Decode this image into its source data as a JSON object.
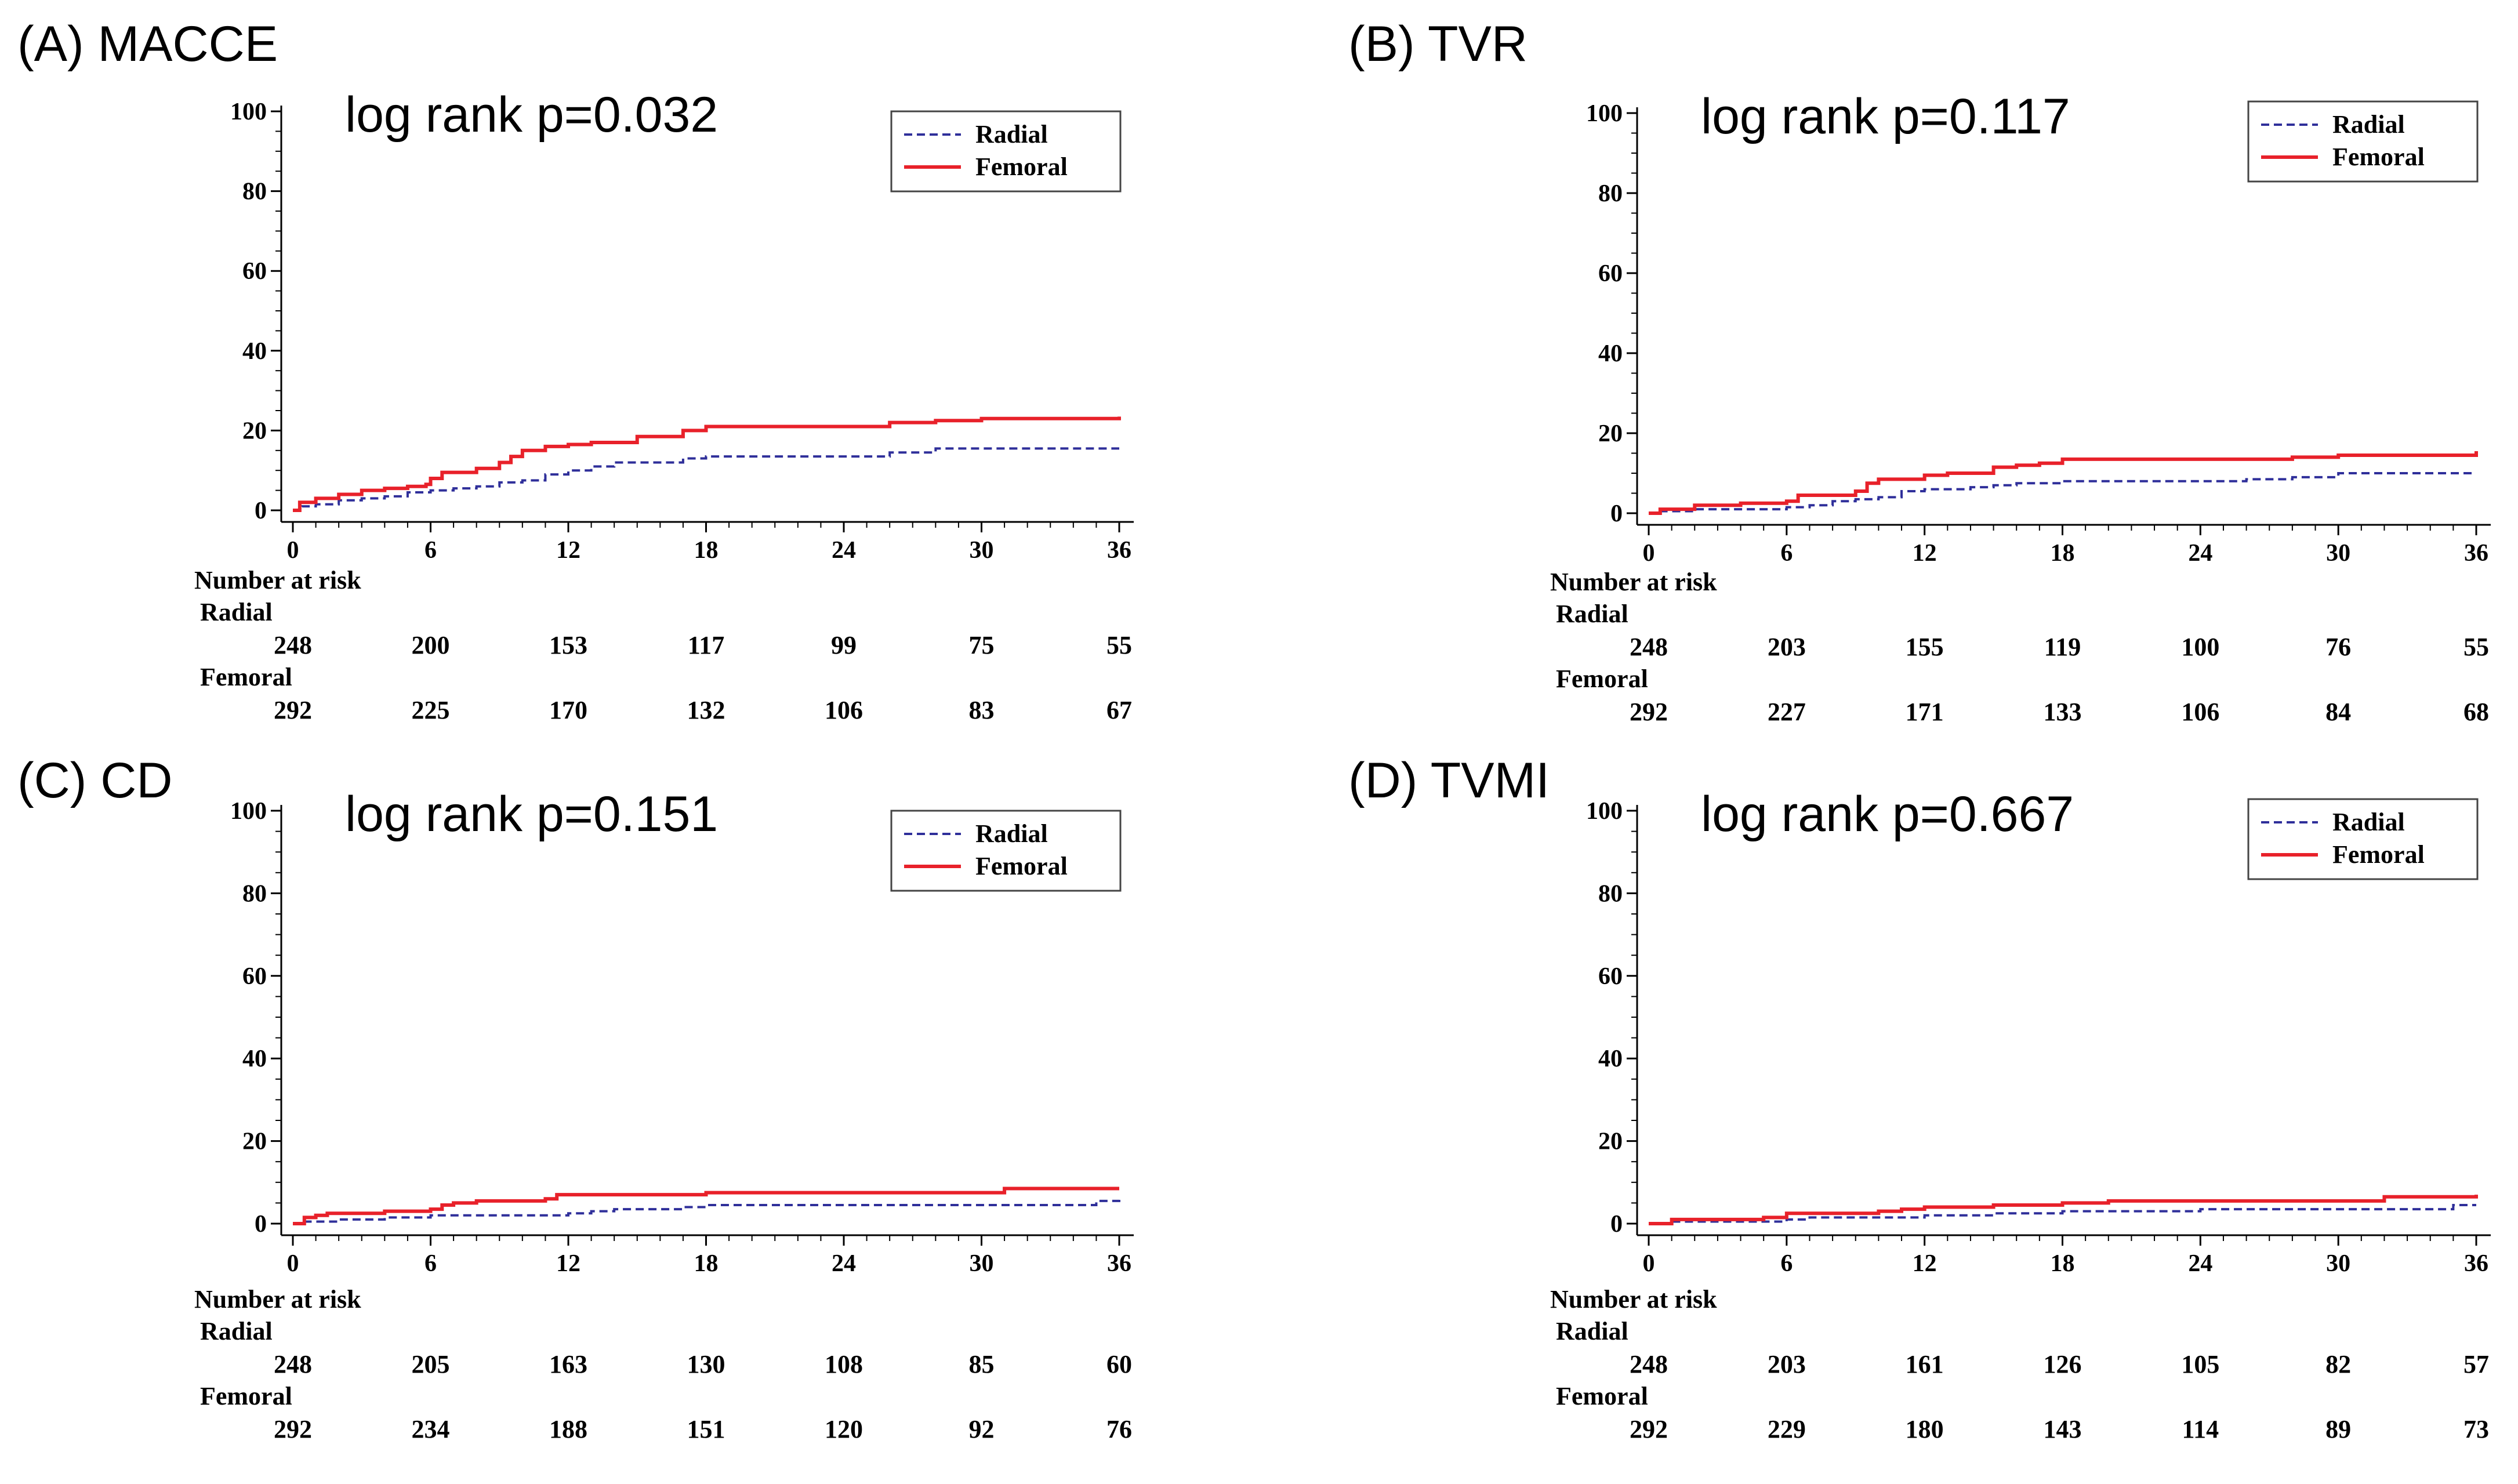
{
  "chart_data": [
    {
      "type": "line",
      "panel_title": "(A) MACCE",
      "annotation": "log rank p=0.032",
      "x_ticks": [
        "0",
        "6",
        "12",
        "18",
        "24",
        "30",
        "36"
      ],
      "y_ticks": [
        "0",
        "20",
        "40",
        "60",
        "80",
        "100"
      ],
      "xlim": [
        0,
        36
      ],
      "ylim": [
        0,
        100
      ],
      "legend": [
        "Radial",
        "Femoral"
      ],
      "legend_position": "top-right",
      "series": [
        {
          "name": "Radial",
          "color": "#2f2f9a",
          "style": "dashed",
          "x": [
            0,
            0.4,
            1,
            2,
            3,
            4,
            5,
            6,
            7,
            8,
            9,
            10,
            11,
            12,
            13,
            14,
            15,
            17,
            18,
            24,
            26,
            28,
            30,
            36
          ],
          "y": [
            0,
            1,
            1.5,
            2.5,
            3,
            3.5,
            4.5,
            5,
            5.5,
            6,
            7,
            7.5,
            9,
            10,
            11,
            12,
            12,
            13,
            13.5,
            13.5,
            14.5,
            15.5,
            15.5,
            15.5
          ]
        },
        {
          "name": "Femoral",
          "color": "#e8212a",
          "style": "solid",
          "x": [
            0,
            0.3,
            1,
            2,
            3,
            4,
            5,
            5.8,
            6,
            6.5,
            8,
            9,
            9.5,
            10,
            11,
            12,
            13,
            15,
            17,
            18,
            24,
            26,
            28,
            30,
            36
          ],
          "y": [
            0,
            2,
            3,
            4,
            5,
            5.5,
            6,
            6.5,
            8,
            9.5,
            10.5,
            12,
            13.5,
            15,
            16,
            16.5,
            17,
            18.5,
            20,
            21,
            21,
            22,
            22.5,
            23,
            23.5
          ]
        }
      ],
      "risk_table": {
        "heading": "Number at risk",
        "groups": [
          {
            "label": "Radial",
            "values": [
              "248",
              "200",
              "153",
              "117",
              "99",
              "75",
              "55"
            ]
          },
          {
            "label": "Femoral",
            "values": [
              "292",
              "225",
              "170",
              "132",
              "106",
              "83",
              "67"
            ]
          }
        ]
      }
    },
    {
      "type": "line",
      "panel_title": "(B) TVR",
      "annotation": "log rank p=0.117",
      "x_ticks": [
        "0",
        "6",
        "12",
        "18",
        "24",
        "30",
        "36"
      ],
      "y_ticks": [
        "0",
        "20",
        "40",
        "60",
        "80",
        "100"
      ],
      "xlim": [
        0,
        36
      ],
      "ylim": [
        0,
        100
      ],
      "legend": [
        "Radial",
        "Femoral"
      ],
      "legend_position": "top-right",
      "series": [
        {
          "name": "Radial",
          "color": "#2f2f9a",
          "style": "dashed",
          "x": [
            0,
            0.5,
            2,
            4,
            6,
            7,
            8,
            9,
            10,
            11,
            12,
            14,
            15,
            16,
            18,
            24,
            26,
            28,
            30,
            36
          ],
          "y": [
            0,
            0.5,
            1,
            1,
            1.5,
            2,
            3,
            3.5,
            4,
            5.5,
            6,
            6.5,
            7,
            7.5,
            8,
            8,
            8.5,
            9,
            10,
            10
          ]
        },
        {
          "name": "Femoral",
          "color": "#e8212a",
          "style": "solid",
          "x": [
            0,
            0.5,
            2,
            4,
            6,
            6.5,
            9,
            9.5,
            10,
            12,
            13,
            15,
            16,
            17,
            18,
            24,
            26,
            28,
            30,
            35,
            36
          ],
          "y": [
            0,
            1,
            2,
            2.5,
            3,
            4.5,
            5.5,
            7.5,
            8.5,
            9.5,
            10,
            11.5,
            12,
            12.5,
            13.5,
            13.5,
            13.5,
            14,
            14.5,
            14.5,
            15.5
          ]
        }
      ],
      "risk_table": {
        "heading": "Number at risk",
        "groups": [
          {
            "label": "Radial",
            "values": [
              "248",
              "203",
              "155",
              "119",
              "100",
              "76",
              "55"
            ]
          },
          {
            "label": "Femoral",
            "values": [
              "292",
              "227",
              "171",
              "133",
              "106",
              "84",
              "68"
            ]
          }
        ]
      }
    },
    {
      "type": "line",
      "panel_title": "(C) CD",
      "annotation": "log rank p=0.151",
      "x_ticks": [
        "0",
        "6",
        "12",
        "18",
        "24",
        "30",
        "36"
      ],
      "y_ticks": [
        "0",
        "20",
        "40",
        "60",
        "80",
        "100"
      ],
      "xlim": [
        0,
        36
      ],
      "ylim": [
        0,
        100
      ],
      "legend": [
        "Radial",
        "Femoral"
      ],
      "legend_position": "top-right",
      "series": [
        {
          "name": "Radial",
          "color": "#2f2f9a",
          "style": "dashed",
          "x": [
            0,
            0.5,
            2,
            4,
            6,
            11,
            12,
            13,
            14,
            17,
            18,
            24,
            30,
            34,
            35,
            36
          ],
          "y": [
            0,
            0.5,
            1,
            1.5,
            2,
            2,
            2.5,
            3,
            3.5,
            4,
            4.5,
            4.5,
            4.5,
            4.5,
            5.5,
            6
          ]
        },
        {
          "name": "Femoral",
          "color": "#e8212a",
          "style": "solid",
          "x": [
            0,
            0.5,
            1,
            1.5,
            3,
            4,
            5,
            6,
            6.5,
            7,
            8,
            11,
            11.5,
            13,
            18,
            24,
            30,
            31,
            36
          ],
          "y": [
            0,
            1.5,
            2,
            2.5,
            2.5,
            3,
            3,
            3.5,
            4.5,
            5,
            5.5,
            6,
            7,
            7,
            7.5,
            7.5,
            7.5,
            8.5,
            8.5
          ]
        }
      ],
      "risk_table": {
        "heading": "Number at risk",
        "groups": [
          {
            "label": "Radial",
            "values": [
              "248",
              "205",
              "163",
              "130",
              "108",
              "85",
              "60"
            ]
          },
          {
            "label": "Femoral",
            "values": [
              "292",
              "234",
              "188",
              "151",
              "120",
              "92",
              "76"
            ]
          }
        ]
      }
    },
    {
      "type": "line",
      "panel_title": "(D) TVMI",
      "annotation": "log rank p=0.667",
      "x_ticks": [
        "0",
        "6",
        "12",
        "18",
        "24",
        "30",
        "36"
      ],
      "y_ticks": [
        "0",
        "20",
        "40",
        "60",
        "80",
        "100"
      ],
      "xlim": [
        0,
        36
      ],
      "ylim": [
        0,
        100
      ],
      "legend": [
        "Radial",
        "Femoral"
      ],
      "legend_position": "top-right",
      "series": [
        {
          "name": "Radial",
          "color": "#2f2f9a",
          "style": "dashed",
          "x": [
            0,
            1,
            3,
            6,
            7,
            10,
            12,
            15,
            18,
            24,
            30,
            35,
            36
          ],
          "y": [
            0,
            0.5,
            0.5,
            1,
            1.5,
            1.5,
            2,
            2.5,
            3,
            3.5,
            3.5,
            4.5,
            4.5
          ]
        },
        {
          "name": "Femoral",
          "color": "#e8212a",
          "style": "solid",
          "x": [
            0,
            1,
            3,
            5,
            6,
            8,
            10,
            11,
            12,
            14,
            15,
            18,
            20,
            24,
            30,
            32,
            36
          ],
          "y": [
            0,
            1,
            1,
            1.5,
            2.5,
            2.5,
            3,
            3.5,
            4,
            4,
            4.5,
            5,
            5.5,
            5.5,
            5.5,
            6.5,
            7
          ]
        }
      ],
      "risk_table": {
        "heading": "Number at risk",
        "groups": [
          {
            "label": "Radial",
            "values": [
              "248",
              "203",
              "161",
              "126",
              "105",
              "82",
              "57"
            ]
          },
          {
            "label": "Femoral",
            "values": [
              "292",
              "229",
              "180",
              "143",
              "114",
              "89",
              "73"
            ]
          }
        ]
      }
    }
  ]
}
